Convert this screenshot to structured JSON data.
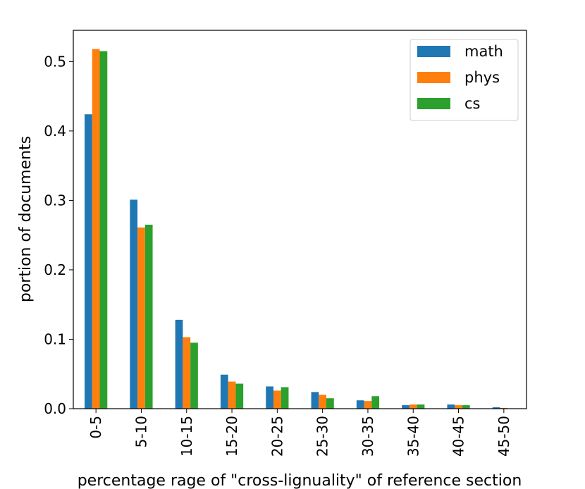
{
  "chart_data": {
    "type": "bar",
    "categories": [
      "0-5",
      "5-10",
      "10-15",
      "15-20",
      "20-25",
      "25-30",
      "30-35",
      "35-40",
      "40-45",
      "45-50"
    ],
    "series": [
      {
        "name": "math",
        "color": "#1f77b4",
        "values": [
          0.424,
          0.301,
          0.128,
          0.049,
          0.032,
          0.024,
          0.012,
          0.005,
          0.006,
          0.002
        ]
      },
      {
        "name": "phys",
        "color": "#ff7f0e",
        "values": [
          0.518,
          0.261,
          0.103,
          0.039,
          0.026,
          0.02,
          0.011,
          0.006,
          0.005,
          0.001
        ]
      },
      {
        "name": "cs",
        "color": "#2ca02c",
        "values": [
          0.515,
          0.265,
          0.095,
          0.036,
          0.031,
          0.015,
          0.018,
          0.006,
          0.005,
          0.0
        ]
      }
    ],
    "xlabel": "percentage rage of \"cross-lignuality\" of reference section",
    "ylabel": "portion of documents",
    "ylim": [
      0,
      0.545
    ],
    "yticks": [
      "0.0",
      "0.1",
      "0.2",
      "0.3",
      "0.4",
      "0.5"
    ],
    "legend_position": "top-right",
    "grid": false
  }
}
